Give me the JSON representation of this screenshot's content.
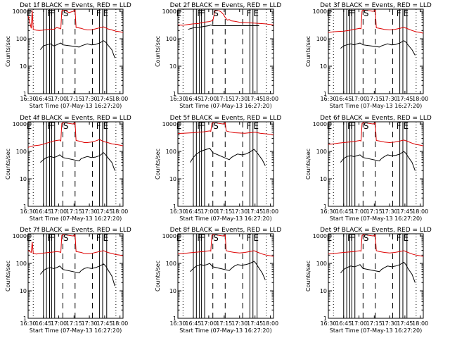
{
  "chart_data": {
    "type": "line",
    "x_tick_labels": [
      "16:30",
      "16:45",
      "17:00",
      "17:15",
      "17:30",
      "17:45",
      "18:00"
    ],
    "x_tick_minutes": [
      990,
      1005,
      1020,
      1035,
      1050,
      1065,
      1080
    ],
    "xlim_minutes": [
      990,
      1083
    ],
    "y_tick_labels": [
      "1",
      "10",
      "100",
      "1000"
    ],
    "ylim": [
      1,
      1200
    ],
    "y_scale": "log",
    "ylabel": "Counts/sec",
    "xlabel": "Start Time (07-May-13 16:27:20)",
    "series_colors": {
      "events": "#000000",
      "lld": "#dd0000"
    },
    "panels": [
      {
        "title": "Det 1f BLACK = Events, RED = LLD",
        "red": {
          "x": [
            990,
            993,
            994,
            995,
            998,
            1001,
            1004,
            1008,
            1012,
            1015,
            1018,
            1021,
            1022,
            1023,
            1024,
            1026,
            1027,
            1030,
            1034,
            1036,
            1037,
            1042,
            1045,
            1048,
            1052,
            1056,
            1060,
            1064,
            1068,
            1072,
            1076,
            1080,
            1083
          ],
          "y": [
            700,
            240,
            1100,
            220,
            205,
            200,
            205,
            215,
            225,
            220,
            255,
            240,
            230,
            1050,
            1100,
            1100,
            1050,
            900,
            1000,
            1100,
            260,
            240,
            220,
            210,
            210,
            230,
            250,
            270,
            230,
            210,
            190,
            180,
            170
          ]
        },
        "black": {
          "x": [
            1002,
            1005,
            1008,
            1012,
            1015,
            1018,
            1021,
            1022,
            1024,
            1040,
            1042,
            1045,
            1048,
            1052,
            1056,
            1060,
            1064,
            1066,
            1068,
            1072,
            1075
          ],
          "y": [
            40,
            55,
            60,
            65,
            55,
            60,
            68,
            70,
            60,
            50,
            55,
            60,
            65,
            60,
            62,
            70,
            85,
            75,
            60,
            40,
            20
          ]
        }
      },
      {
        "title": "Det 2f BLACK = Events, RED = LLD",
        "red": {
          "x": [
            990,
            995,
            1000,
            1005,
            1010,
            1015,
            1020,
            1024,
            1026,
            1028,
            1030,
            1032,
            1034,
            1036,
            1038,
            1040,
            1042,
            1046,
            1050,
            1055,
            1060,
            1065,
            1070,
            1075,
            1080,
            1083
          ],
          "y": [
            320,
            310,
            330,
            350,
            360,
            400,
            420,
            460,
            1000,
            1100,
            1050,
            950,
            800,
            600,
            480,
            500,
            450,
            430,
            400,
            390,
            380,
            370,
            360,
            350,
            330,
            320
          ]
        },
        "black": {
          "x": [
            1000,
            1005,
            1010,
            1015,
            1020,
            1022,
            1024,
            1040,
            1045,
            1050,
            1055,
            1060,
            1065,
            1069
          ],
          "y": [
            220,
            250,
            260,
            280,
            300,
            320,
            300,
            300,
            300,
            300,
            300,
            300,
            300,
            300
          ]
        }
      },
      {
        "title": "Det 3f BLACK = Events, RED = LLD",
        "red": {
          "x": [
            990,
            995,
            1000,
            1005,
            1010,
            1015,
            1018,
            1021,
            1022,
            1023,
            1024,
            1027,
            1030,
            1034,
            1036,
            1037,
            1040,
            1045,
            1050,
            1055,
            1060,
            1064,
            1068,
            1072,
            1076,
            1080,
            1083
          ],
          "y": [
            170,
            180,
            185,
            190,
            200,
            220,
            230,
            240,
            230,
            1050,
            1100,
            1100,
            1050,
            1000,
            1100,
            250,
            240,
            220,
            210,
            220,
            240,
            260,
            230,
            200,
            180,
            170,
            160
          ]
        },
        "black": {
          "x": [
            1002,
            1005,
            1008,
            1012,
            1015,
            1018,
            1021,
            1024,
            1040,
            1042,
            1045,
            1048,
            1052,
            1056,
            1060,
            1064,
            1066,
            1068,
            1072,
            1075
          ],
          "y": [
            45,
            55,
            60,
            65,
            60,
            65,
            70,
            60,
            50,
            55,
            60,
            65,
            60,
            62,
            70,
            85,
            75,
            60,
            40,
            25
          ]
        }
      },
      {
        "title": "Det 4f BLACK = Events, RED = LLD",
        "red": {
          "x": [
            990,
            992,
            995,
            998,
            1001,
            1004,
            1008,
            1012,
            1015,
            1018,
            1021,
            1022,
            1023,
            1024,
            1027,
            1030,
            1034,
            1036,
            1037,
            1042,
            1045,
            1048,
            1052,
            1056,
            1060,
            1064,
            1068,
            1072,
            1076,
            1080,
            1083
          ],
          "y": [
            140,
            150,
            160,
            165,
            170,
            180,
            200,
            220,
            240,
            250,
            260,
            240,
            1050,
            1100,
            1100,
            1050,
            1000,
            1100,
            250,
            230,
            210,
            210,
            220,
            240,
            270,
            230,
            210,
            190,
            180,
            170,
            160
          ]
        },
        "black": {
          "x": [
            1002,
            1005,
            1008,
            1012,
            1015,
            1018,
            1021,
            1024,
            1040,
            1042,
            1045,
            1048,
            1052,
            1056,
            1060,
            1064,
            1066,
            1068,
            1072,
            1075
          ],
          "y": [
            40,
            50,
            60,
            65,
            60,
            65,
            75,
            60,
            45,
            55,
            60,
            65,
            60,
            62,
            70,
            90,
            75,
            60,
            40,
            20
          ]
        }
      },
      {
        "title": "Det 5f BLACK = Events, RED = LLD",
        "red": {
          "x": [
            990,
            995,
            1000,
            1005,
            1010,
            1015,
            1018,
            1021,
            1022,
            1023,
            1024,
            1027,
            1030,
            1034,
            1036,
            1037,
            1040,
            1045,
            1050,
            1055,
            1060,
            1065,
            1070,
            1075,
            1080,
            1083
          ],
          "y": [
            450,
            460,
            470,
            480,
            500,
            520,
            540,
            560,
            540,
            1050,
            1100,
            1100,
            1050,
            1000,
            1100,
            560,
            520,
            480,
            470,
            460,
            480,
            500,
            460,
            440,
            420,
            400
          ]
        },
        "black": {
          "x": [
            1002,
            1005,
            1008,
            1012,
            1015,
            1018,
            1021,
            1024,
            1040,
            1042,
            1045,
            1048,
            1052,
            1056,
            1060,
            1064,
            1066,
            1068,
            1072,
            1075
          ],
          "y": [
            40,
            60,
            80,
            100,
            110,
            120,
            130,
            90,
            50,
            60,
            70,
            80,
            75,
            80,
            95,
            120,
            100,
            80,
            50,
            30
          ]
        }
      },
      {
        "title": "Det 6f BLACK = Events, RED = LLD",
        "red": {
          "x": [
            990,
            995,
            1000,
            1005,
            1010,
            1015,
            1018,
            1021,
            1022,
            1023,
            1024,
            1027,
            1030,
            1034,
            1036,
            1037,
            1040,
            1045,
            1050,
            1055,
            1060,
            1064,
            1068,
            1072,
            1076,
            1080,
            1083
          ],
          "y": [
            180,
            190,
            200,
            210,
            220,
            230,
            240,
            250,
            240,
            1050,
            1100,
            1100,
            1050,
            1000,
            1100,
            250,
            240,
            220,
            210,
            220,
            240,
            260,
            230,
            200,
            180,
            170,
            160
          ]
        },
        "black": {
          "x": [
            1002,
            1005,
            1008,
            1012,
            1015,
            1018,
            1021,
            1024,
            1040,
            1042,
            1045,
            1048,
            1052,
            1056,
            1060,
            1064,
            1066,
            1068,
            1072,
            1075
          ],
          "y": [
            40,
            55,
            65,
            70,
            65,
            70,
            75,
            60,
            45,
            55,
            65,
            75,
            70,
            72,
            80,
            100,
            85,
            65,
            40,
            20
          ]
        }
      },
      {
        "title": "Det 7f BLACK = Events, RED = LLD",
        "red": {
          "x": [
            990,
            993,
            994,
            995,
            998,
            1001,
            1004,
            1008,
            1012,
            1015,
            1018,
            1021,
            1022,
            1023,
            1024,
            1027,
            1030,
            1034,
            1036,
            1037,
            1042,
            1045,
            1048,
            1052,
            1056,
            1060,
            1064,
            1068,
            1072,
            1076,
            1080,
            1083
          ],
          "y": [
            300,
            250,
            600,
            230,
            220,
            225,
            235,
            245,
            255,
            260,
            270,
            260,
            250,
            1050,
            1100,
            1100,
            1050,
            1000,
            1100,
            270,
            250,
            230,
            225,
            230,
            250,
            270,
            290,
            250,
            230,
            210,
            200,
            190
          ]
        },
        "black": {
          "x": [
            1002,
            1005,
            1008,
            1012,
            1015,
            1018,
            1021,
            1024,
            1040,
            1042,
            1045,
            1048,
            1052,
            1056,
            1060,
            1064,
            1066,
            1068,
            1072,
            1075
          ],
          "y": [
            40,
            55,
            65,
            70,
            65,
            70,
            80,
            60,
            45,
            55,
            65,
            70,
            65,
            70,
            80,
            95,
            80,
            60,
            35,
            15
          ]
        }
      },
      {
        "title": "Det 8f BLACK = Events, RED = LLD",
        "red": {
          "x": [
            990,
            995,
            1000,
            1005,
            1010,
            1015,
            1018,
            1021,
            1022,
            1023,
            1024,
            1027,
            1030,
            1034,
            1036,
            1037,
            1040,
            1045,
            1050,
            1055,
            1060,
            1064,
            1068,
            1072,
            1076,
            1080,
            1083
          ],
          "y": [
            220,
            230,
            240,
            250,
            260,
            270,
            280,
            290,
            280,
            1050,
            1100,
            1100,
            1050,
            1000,
            1100,
            290,
            270,
            250,
            240,
            250,
            270,
            290,
            250,
            220,
            200,
            190,
            180
          ]
        },
        "black": {
          "x": [
            1002,
            1005,
            1008,
            1012,
            1015,
            1018,
            1021,
            1024,
            1040,
            1042,
            1045,
            1048,
            1052,
            1056,
            1060,
            1064,
            1066,
            1068,
            1072,
            1075
          ],
          "y": [
            50,
            65,
            80,
            90,
            85,
            90,
            100,
            75,
            55,
            65,
            80,
            90,
            85,
            90,
            100,
            120,
            100,
            75,
            45,
            25
          ]
        }
      },
      {
        "title": "Det 9f BLACK = Events, RED = LLD",
        "red": {
          "x": [
            990,
            995,
            1000,
            1005,
            1010,
            1015,
            1018,
            1021,
            1022,
            1023,
            1024,
            1027,
            1030,
            1034,
            1036,
            1037,
            1040,
            1045,
            1050,
            1055,
            1060,
            1064,
            1068,
            1072,
            1076,
            1080,
            1083
          ],
          "y": [
            220,
            230,
            240,
            250,
            260,
            270,
            280,
            290,
            280,
            1050,
            1100,
            1100,
            1050,
            1000,
            1100,
            290,
            270,
            250,
            240,
            250,
            270,
            290,
            250,
            220,
            200,
            190,
            180
          ]
        },
        "black": {
          "x": [
            1002,
            1005,
            1008,
            1012,
            1015,
            1018,
            1021,
            1024,
            1040,
            1042,
            1045,
            1048,
            1052,
            1056,
            1060,
            1064,
            1066,
            1068,
            1072,
            1075
          ],
          "y": [
            45,
            60,
            70,
            80,
            75,
            80,
            90,
            65,
            50,
            60,
            70,
            80,
            75,
            80,
            90,
            110,
            90,
            65,
            40,
            20
          ]
        }
      }
    ],
    "vertical_lines": {
      "solid": [
        1005,
        1008,
        1011,
        1013,
        1016,
        1060,
        1063,
        1067
      ],
      "dashed": [
        1024,
        1036,
        1053
      ],
      "dotted": [
        995,
        1076
      ]
    },
    "markers": [
      {
        "label": "E",
        "x": 991
      },
      {
        "label": "F",
        "x": 1011
      },
      {
        "label": "F",
        "x": 1014
      },
      {
        "label": "S",
        "x": 1027
      },
      {
        "label": "F",
        "x": 1059
      },
      {
        "label": "E",
        "x": 1066
      }
    ]
  }
}
